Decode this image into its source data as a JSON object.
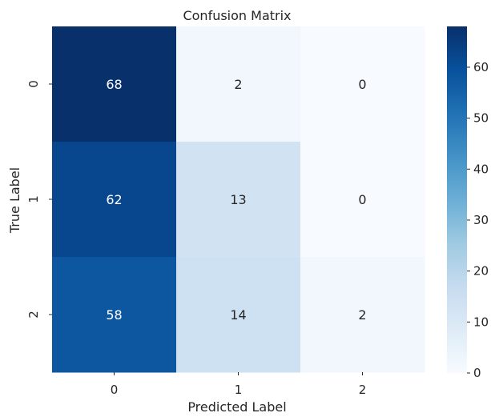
{
  "chart_data": {
    "type": "heatmap",
    "title": "Confusion Matrix",
    "xlabel": "Predicted Label",
    "ylabel": "True Label",
    "x_categories": [
      "0",
      "1",
      "2"
    ],
    "y_categories": [
      "0",
      "1",
      "2"
    ],
    "values": [
      [
        68,
        2,
        0
      ],
      [
        62,
        13,
        0
      ],
      [
        58,
        14,
        2
      ]
    ],
    "colormap": "Blues",
    "colorbar": {
      "range": [
        0,
        68
      ],
      "ticks": [
        0,
        10,
        20,
        30,
        40,
        50,
        60
      ],
      "tick_labels": [
        "0",
        "10",
        "20",
        "30",
        "40",
        "50",
        "60"
      ]
    },
    "colors": {
      "low": "#f7fbff",
      "high": "#08306b"
    }
  }
}
